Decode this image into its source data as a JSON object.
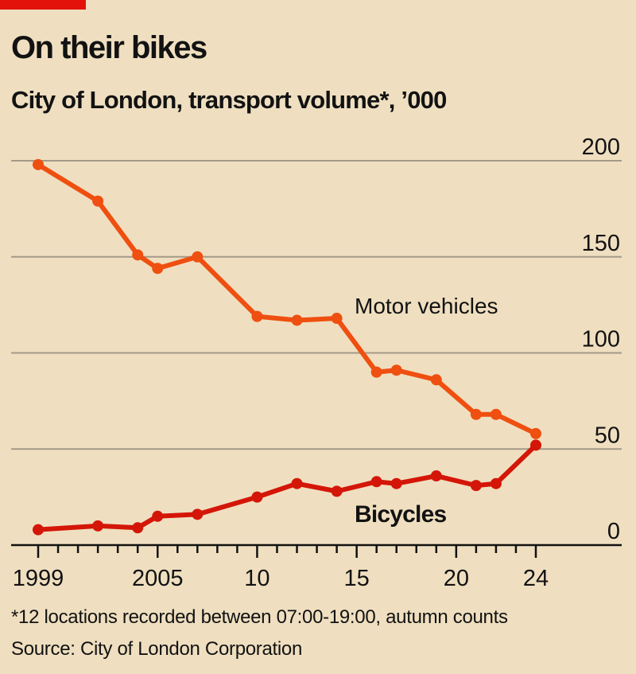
{
  "header": {
    "title": "On their bikes",
    "subtitle": "City of London, transport volume*, ’000"
  },
  "footer": {
    "footnote": "*12 locations recorded between 07:00-19:00, autumn counts",
    "source": "Source: City of London Corporation"
  },
  "colors": {
    "background": "#efdfc0",
    "motor": "#ef4f10",
    "bicycle": "#d41608",
    "gridline": "#a39a88",
    "axis": "#121212",
    "tag": "#e3120b"
  },
  "chart_data": {
    "type": "line",
    "xlim": [
      1999,
      2024
    ],
    "ylim": [
      0,
      200
    ],
    "y_ticks": [
      {
        "value": 0,
        "label": "0"
      },
      {
        "value": 50,
        "label": "50"
      },
      {
        "value": 100,
        "label": "100"
      },
      {
        "value": 150,
        "label": "150"
      },
      {
        "value": 200,
        "label": "200"
      }
    ],
    "x_ticks": [
      {
        "value": 1999,
        "label": "1999"
      },
      {
        "value": 2005,
        "label": "2005"
      },
      {
        "value": 2010,
        "label": "10"
      },
      {
        "value": 2015,
        "label": "15"
      },
      {
        "value": 2020,
        "label": "20"
      },
      {
        "value": 2024,
        "label": "24"
      }
    ],
    "grid": true,
    "series": [
      {
        "name": "Motor vehicles",
        "color": "#ef4f10",
        "x": [
          1999,
          2002,
          2004,
          2005,
          2007,
          2010,
          2012,
          2014,
          2016,
          2017,
          2019,
          2021,
          2022,
          2024
        ],
        "y": [
          198,
          179,
          151,
          144,
          150,
          119,
          117,
          118,
          90,
          91,
          86,
          68,
          68,
          58
        ]
      },
      {
        "name": "Bicycles",
        "color": "#d41608",
        "x": [
          1999,
          2002,
          2004,
          2005,
          2007,
          2010,
          2012,
          2014,
          2016,
          2017,
          2019,
          2021,
          2022,
          2024
        ],
        "y": [
          8,
          10,
          9,
          15,
          16,
          25,
          32,
          28,
          33,
          32,
          36,
          31,
          32,
          52
        ]
      }
    ]
  }
}
